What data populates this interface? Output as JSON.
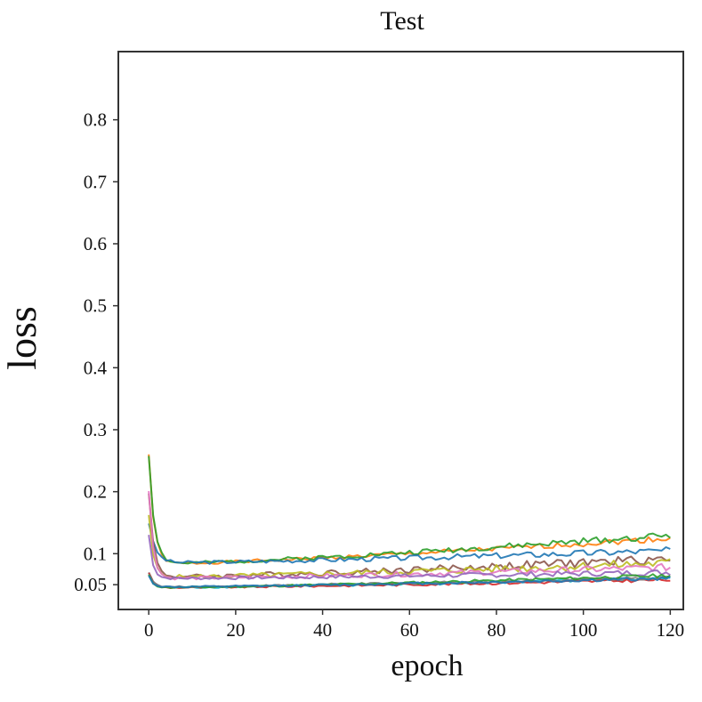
{
  "chart_data": {
    "type": "line",
    "title": "Test",
    "xlabel": "epoch",
    "ylabel": "loss",
    "xlim": [
      -7,
      123
    ],
    "ylim": [
      0.01,
      0.91
    ],
    "xticks": [
      0,
      20,
      40,
      60,
      80,
      100,
      120
    ],
    "yticks": [
      0.05,
      0.1,
      0.2,
      0.3,
      0.4,
      0.5,
      0.6,
      0.7,
      0.8
    ],
    "ytick_labels": [
      "0.05",
      "0.1",
      "0.2",
      "0.3",
      "0.4",
      "0.5",
      "0.6",
      "0.7",
      "0.8"
    ],
    "grid": false,
    "legend": "none",
    "series": [
      {
        "color": "#ff7f0e",
        "start": 0.26,
        "floor": 0.083,
        "end": 0.125,
        "noise": 0.005,
        "decay": 1.2,
        "seed": 1
      },
      {
        "color": "#2ca02c",
        "start": 0.258,
        "floor": 0.083,
        "end": 0.13,
        "noise": 0.006,
        "decay": 1.3,
        "seed": 2
      },
      {
        "color": "#1f77b4",
        "start": 0.15,
        "floor": 0.085,
        "end": 0.105,
        "noise": 0.006,
        "decay": 1.5,
        "seed": 3
      },
      {
        "color": "#8c564b",
        "start": 0.2,
        "floor": 0.062,
        "end": 0.092,
        "noise": 0.008,
        "decay": 1.1,
        "seed": 4
      },
      {
        "color": "#bcbd22",
        "start": 0.16,
        "floor": 0.062,
        "end": 0.085,
        "noise": 0.008,
        "decay": 1.0,
        "seed": 5
      },
      {
        "color": "#e377c2",
        "start": 0.2,
        "floor": 0.06,
        "end": 0.078,
        "noise": 0.006,
        "decay": 1.0,
        "seed": 6
      },
      {
        "color": "#9467bd",
        "start": 0.13,
        "floor": 0.06,
        "end": 0.07,
        "noise": 0.005,
        "decay": 0.9,
        "seed": 7
      },
      {
        "color": "#17becf",
        "start": 0.07,
        "floor": 0.045,
        "end": 0.06,
        "noise": 0.003,
        "decay": 1.0,
        "seed": 8
      },
      {
        "color": "#d62728",
        "start": 0.07,
        "floor": 0.045,
        "end": 0.058,
        "noise": 0.003,
        "decay": 1.0,
        "seed": 9
      },
      {
        "color": "#7f7f7f",
        "start": 0.068,
        "floor": 0.046,
        "end": 0.062,
        "noise": 0.003,
        "decay": 1.0,
        "seed": 10
      },
      {
        "color": "#2ca02c",
        "start": 0.065,
        "floor": 0.045,
        "end": 0.065,
        "noise": 0.003,
        "decay": 1.0,
        "seed": 11
      },
      {
        "color": "#1f77b4",
        "start": 0.064,
        "floor": 0.046,
        "end": 0.06,
        "noise": 0.003,
        "decay": 1.0,
        "seed": 12
      }
    ]
  }
}
